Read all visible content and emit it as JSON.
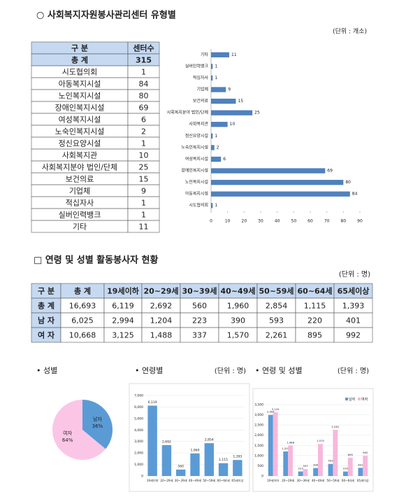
{
  "section1": {
    "title": "○ 사회복지자원봉사관리센터 유형별",
    "unit": "(단위 : 개소)",
    "table": {
      "headers": [
        "구 분",
        "센터수"
      ],
      "rows": [
        [
          "총 계",
          315
        ],
        [
          "시도협의회",
          1
        ],
        [
          "아동복지시설",
          84
        ],
        [
          "노인복지시설",
          80
        ],
        [
          "장애인복지시설",
          69
        ],
        [
          "여성복지시설",
          6
        ],
        [
          "노숙인복지시설",
          2
        ],
        [
          "정신요양시설",
          1
        ],
        [
          "사회복지관",
          10
        ],
        [
          "사회복지분야 법인/단체",
          25
        ],
        [
          "보건의료",
          15
        ],
        [
          "기업체",
          9
        ],
        [
          "적십자사",
          1
        ],
        [
          "실버인력뱅크",
          1
        ],
        [
          "기타",
          11
        ]
      ]
    }
  },
  "section2": {
    "title": "□ 연령 및 성별 활동봉사자 현황",
    "unit": "(단위 : 명)",
    "table": {
      "headers": [
        "구 분",
        "총 계",
        "19세이하",
        "20~29세",
        "30~39세",
        "40~49세",
        "50~59세",
        "60~64세",
        "65세이상"
      ],
      "rows": [
        [
          "총 계",
          "16,693",
          "6,119",
          "2,692",
          "560",
          "1,960",
          "2,854",
          "1,115",
          "1,393"
        ],
        [
          "남 자",
          "6,025",
          "2,994",
          "1,204",
          "223",
          "390",
          "593",
          "220",
          "401"
        ],
        [
          "여 자",
          "10,668",
          "3,125",
          "1,488",
          "337",
          "1,570",
          "2,261",
          "895",
          "992"
        ]
      ]
    }
  },
  "chart_data": [
    {
      "type": "hbar",
      "color": "#4f81bd",
      "categories": [
        "기타",
        "실버인력뱅크",
        "적십자사",
        "기업체",
        "보건의료",
        "사회복지분야 법인/단체",
        "사회복지관",
        "정신요양시설",
        "노숙인복지시설",
        "여성복지시설",
        "장애인복지시설",
        "노인복지시설",
        "아동복지시설",
        "시도협의회"
      ],
      "values": [
        11,
        1,
        1,
        9,
        15,
        25,
        10,
        1,
        2,
        6,
        69,
        80,
        84,
        1
      ],
      "xlim": [
        0,
        90
      ],
      "xticks": [
        0,
        10,
        20,
        30,
        40,
        50,
        60,
        70,
        80,
        90
      ]
    },
    {
      "type": "pie",
      "title": "• 성별",
      "categories": [
        "남자",
        "여자"
      ],
      "values": [
        36,
        64
      ],
      "value_labels": [
        "36%",
        "64%"
      ],
      "colors": [
        "#5b9bd5",
        "#fbc6e6"
      ]
    },
    {
      "type": "bar",
      "title": "• 연령별",
      "subtitle": "(단위 : 명)",
      "color": "#5b9bd5",
      "categories": [
        "19세이하",
        "20~29세",
        "30~39세",
        "40~49세",
        "50~59세",
        "60~64세",
        "65세이상"
      ],
      "values": [
        6119,
        2692,
        560,
        1960,
        2854,
        1115,
        1393
      ],
      "value_labels": [
        "6,119",
        "2,692",
        "560",
        "1,960",
        "2,854",
        "1,115",
        "1,393"
      ],
      "ylim": [
        0,
        7000
      ],
      "yticks": [
        0,
        {
          "value": 1000,
          "label": "1,000"
        },
        {
          "value": 2000,
          "label": "2,000"
        },
        {
          "value": 3000,
          "label": "3,000"
        },
        {
          "value": 4000,
          "label": "4,000"
        },
        {
          "value": 5000,
          "label": "5,000"
        },
        {
          "value": 6000,
          "label": "6,000"
        },
        {
          "value": 7000,
          "label": "7,000"
        }
      ]
    },
    {
      "type": "grouped",
      "title": "• 연령 및 성별",
      "subtitle": "(단위 : 명)",
      "categories": [
        "19세이하",
        "20~29세",
        "30~39세",
        "40~49세",
        "50~59세",
        "60~64세",
        "65세이상"
      ],
      "series": [
        {
          "name": "남자",
          "color": "#5b9bd5",
          "values": [
            2994,
            1204,
            223,
            390,
            593,
            220,
            401
          ],
          "value_labels": [
            "2,994",
            "1,204",
            "223",
            "390",
            "593",
            "220",
            "401"
          ]
        },
        {
          "name": "여자",
          "color": "#f6b8dc",
          "values": [
            3125,
            1488,
            337,
            1570,
            2261,
            895,
            992
          ],
          "value_labels": [
            "3,125",
            "1,488",
            "337",
            "1,570",
            "2,261",
            "895",
            "992"
          ]
        }
      ],
      "ylim": [
        0,
        3500
      ],
      "yticks": [
        0,
        500,
        {
          "value": 1000,
          "label": "1,000"
        },
        {
          "value": 1500,
          "label": "1,500"
        },
        {
          "value": 2000,
          "label": "2,000"
        },
        {
          "value": 2500,
          "label": "2,500"
        },
        {
          "value": 3000,
          "label": "3,000"
        },
        {
          "value": 3500,
          "label": "3,500"
        }
      ],
      "legend": "top-right"
    }
  ]
}
